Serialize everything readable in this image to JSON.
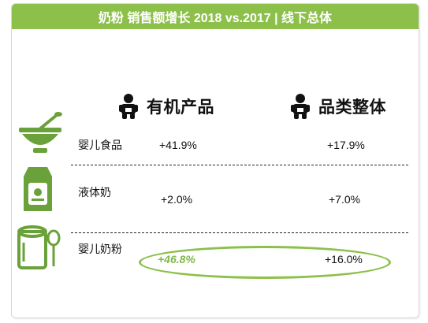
{
  "title": "奶粉 销售额增长 2018 vs.2017 | 线下总体",
  "columns": [
    "有机产品",
    "品类整体"
  ],
  "rows": [
    {
      "label": "婴儿食品",
      "organic": "+41.9%",
      "overall": "+17.9%"
    },
    {
      "label": "液体奶",
      "organic": "+2.0%",
      "overall": "+7.0%"
    },
    {
      "label": "婴儿奶粉",
      "organic": "+46.8%",
      "overall": "+16.0%"
    }
  ],
  "colors": {
    "accent": "#8cc04a",
    "highlight": "#7fb84a"
  },
  "icons": {
    "columns": "baby-icon",
    "rows": [
      "bowl-spoon-icon",
      "milk-carton-icon",
      "formula-can-icon"
    ]
  },
  "chart_data": {
    "type": "table",
    "title": "奶粉 销售额增长 2018 vs.2017 | 线下总体",
    "columns": [
      "有机产品",
      "品类整体"
    ],
    "categories": [
      "婴儿食品",
      "液体奶",
      "婴儿奶粉"
    ],
    "series": [
      {
        "name": "有机产品",
        "values": [
          41.9,
          2.0,
          46.8
        ]
      },
      {
        "name": "品类整体",
        "values": [
          17.9,
          7.0,
          16.0
        ]
      }
    ],
    "unit": "%",
    "highlighted": {
      "category": "婴儿奶粉"
    }
  }
}
